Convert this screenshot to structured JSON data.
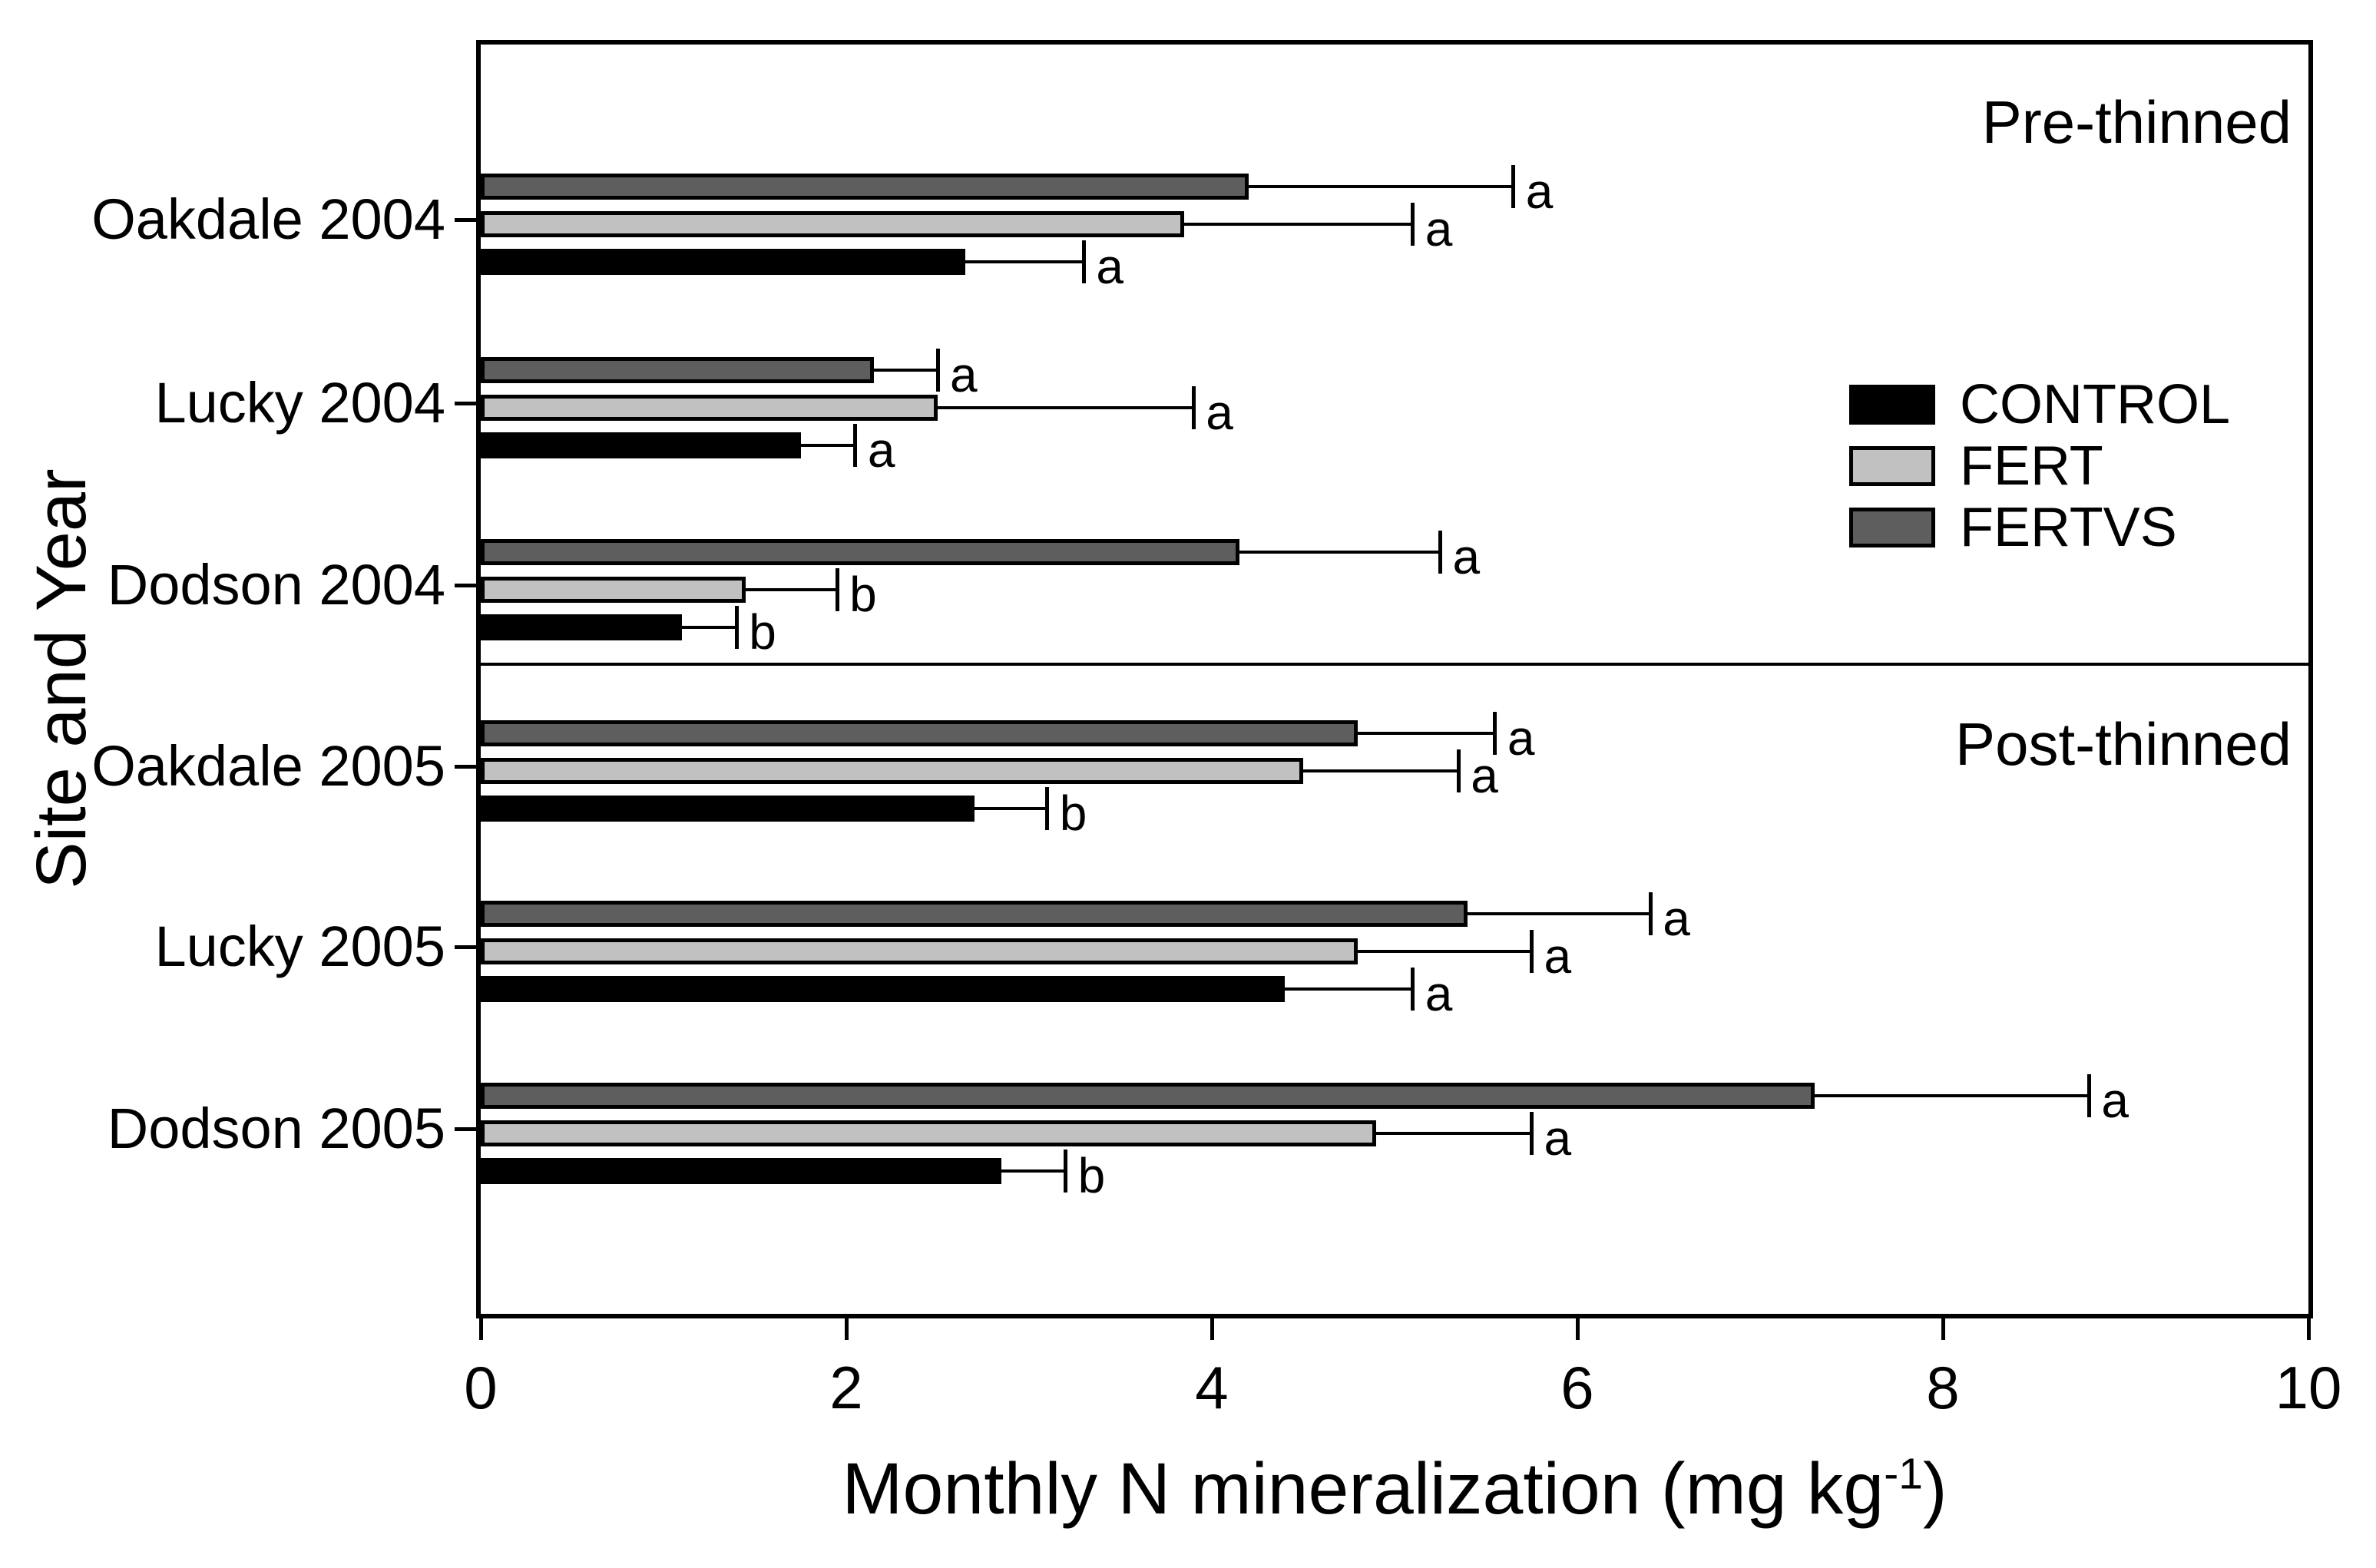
{
  "chart": {
    "y_axis_title": "Site and Year",
    "x_axis_title_main": "Monthly N mineralization (mg kg",
    "x_axis_title_superscript": "-1",
    "x_axis_title_suffix": ")",
    "panel_labels": {
      "pre": "Pre-thinned",
      "post": "Post-thinned"
    }
  },
  "legend": {
    "items": [
      {
        "label": "CONTROL",
        "color": "#000000"
      },
      {
        "label": "FERT",
        "color": "#c1c1c1"
      },
      {
        "label": "FERTVS",
        "color": "#5e5e5e"
      }
    ]
  },
  "chart_data": {
    "type": "bar",
    "orientation": "horizontal",
    "xlabel": "Monthly N mineralization (mg kg-1)",
    "ylabel": "Site and Year",
    "xlim": [
      0,
      10
    ],
    "xticks": [
      0,
      2,
      4,
      6,
      8,
      10
    ],
    "grid": false,
    "legend_position": "inside-right-upper",
    "error_bars": "upper standard error, capped, with significance letters",
    "series_style": {
      "CONTROL": {
        "fill": "#000000",
        "outline": "#000000"
      },
      "FERT": {
        "fill": "#c1c1c1",
        "outline": "#000000"
      },
      "FERTVS": {
        "fill": "#5e5e5e",
        "outline": "#000000"
      }
    },
    "panels": [
      {
        "label": "Pre-thinned",
        "groups": [
          {
            "category": "Oakdale 2004",
            "bars": [
              {
                "series": "FERTVS",
                "value": 4.2,
                "error": 1.45,
                "letter": "a"
              },
              {
                "series": "FERT",
                "value": 3.85,
                "error": 1.25,
                "letter": "a"
              },
              {
                "series": "CONTROL",
                "value": 2.65,
                "error": 0.65,
                "letter": "a"
              }
            ]
          },
          {
            "category": "Lucky 2004",
            "bars": [
              {
                "series": "FERTVS",
                "value": 2.15,
                "error": 0.35,
                "letter": "a"
              },
              {
                "series": "FERT",
                "value": 2.5,
                "error": 1.4,
                "letter": "a"
              },
              {
                "series": "CONTROL",
                "value": 1.75,
                "error": 0.3,
                "letter": "a"
              }
            ]
          },
          {
            "category": "Dodson 2004",
            "bars": [
              {
                "series": "FERTVS",
                "value": 4.15,
                "error": 1.1,
                "letter": "a"
              },
              {
                "series": "FERT",
                "value": 1.45,
                "error": 0.5,
                "letter": "b"
              },
              {
                "series": "CONTROL",
                "value": 1.1,
                "error": 0.3,
                "letter": "b"
              }
            ]
          }
        ]
      },
      {
        "label": "Post-thinned",
        "groups": [
          {
            "category": "Oakdale 2005",
            "bars": [
              {
                "series": "FERTVS",
                "value": 4.8,
                "error": 0.75,
                "letter": "a"
              },
              {
                "series": "FERT",
                "value": 4.5,
                "error": 0.85,
                "letter": "a"
              },
              {
                "series": "CONTROL",
                "value": 2.7,
                "error": 0.4,
                "letter": "b"
              }
            ]
          },
          {
            "category": "Lucky 2005",
            "bars": [
              {
                "series": "FERTVS",
                "value": 5.4,
                "error": 1.0,
                "letter": "a"
              },
              {
                "series": "FERT",
                "value": 4.8,
                "error": 0.95,
                "letter": "a"
              },
              {
                "series": "CONTROL",
                "value": 4.4,
                "error": 0.7,
                "letter": "a"
              }
            ]
          },
          {
            "category": "Dodson 2005",
            "bars": [
              {
                "series": "FERTVS",
                "value": 7.3,
                "error": 1.5,
                "letter": "a"
              },
              {
                "series": "FERT",
                "value": 4.9,
                "error": 0.85,
                "letter": "a"
              },
              {
                "series": "CONTROL",
                "value": 2.85,
                "error": 0.35,
                "letter": "b"
              }
            ]
          }
        ]
      }
    ]
  }
}
